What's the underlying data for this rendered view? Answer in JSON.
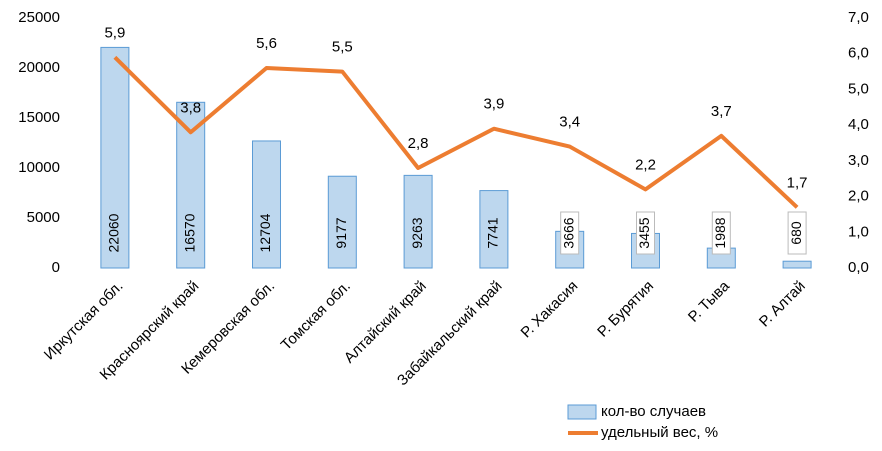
{
  "chart_data": {
    "type": "bar",
    "categories": [
      "Иркутская обл.",
      "Красноярский край",
      "Кемеровская обл.",
      "Томская обл.",
      "Алтайский край",
      "Забайкальский край",
      "Р. Хакасия",
      "Р. Бурятия",
      "Р. Тыва",
      "Р. Алтай"
    ],
    "series": [
      {
        "name": "кол-во случаев",
        "type": "bar",
        "color": "#bdd7ee",
        "edge_color": "#5b9bd5",
        "values": [
          22060,
          16570,
          12704,
          9177,
          9263,
          7741,
          3666,
          3455,
          1988,
          680
        ]
      },
      {
        "name": "удельный вес, %",
        "type": "line",
        "axis": "y2",
        "color": "#ed7d31",
        "values": [
          5.9,
          3.8,
          5.6,
          5.5,
          2.8,
          3.9,
          3.4,
          2.2,
          3.7,
          1.7
        ],
        "value_labels": [
          "5,9",
          "3,8",
          "5,6",
          "5,5",
          "2,8",
          "3,9",
          "3,4",
          "2,2",
          "3,7",
          "1,7"
        ]
      }
    ],
    "ylim": [
      0,
      25000
    ],
    "yticks": [
      0,
      5000,
      10000,
      15000,
      20000,
      25000
    ],
    "y2lim": [
      0,
      7
    ],
    "y2ticks": [
      {
        "value": 0,
        "label": "0,0"
      },
      {
        "value": 1,
        "label": "1,0"
      },
      {
        "value": 2,
        "label": "2,0"
      },
      {
        "value": 3,
        "label": "3,0"
      },
      {
        "value": 4,
        "label": "4,0"
      },
      {
        "value": 5,
        "label": "5,0"
      },
      {
        "value": 6,
        "label": "6,0"
      },
      {
        "value": 7,
        "label": "7,0"
      }
    ],
    "grid": false,
    "legend": "lower right"
  }
}
